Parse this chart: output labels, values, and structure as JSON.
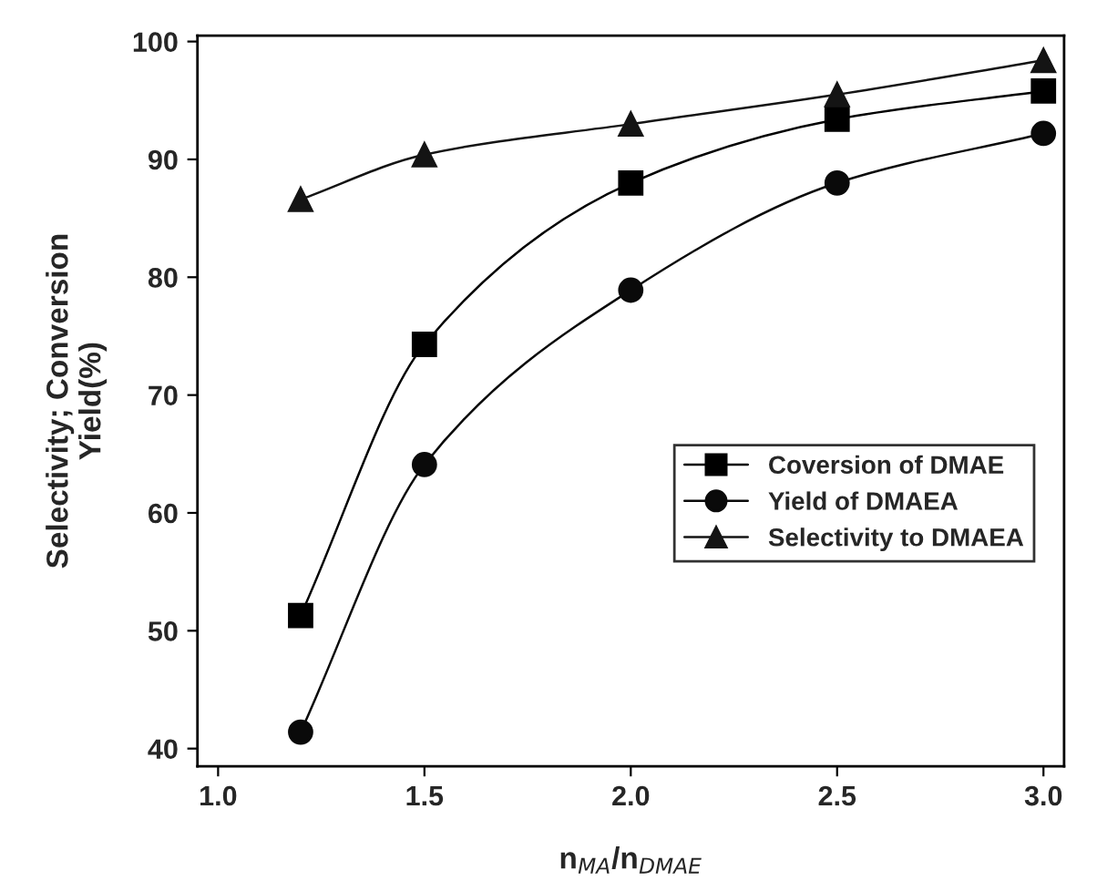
{
  "chart_data": {
    "type": "line",
    "xlabel": "n$_{MA}$/n$_{DMAE}$",
    "ylabel": "Selectivity; Conversion\nYield(%)",
    "x": [
      1.2,
      1.5,
      2.0,
      2.5,
      3.0
    ],
    "series": [
      {
        "name": "Coversion of DMAE",
        "color": "#000000",
        "marker": "square",
        "values": [
          51.3,
          74.3,
          88.0,
          93.4,
          95.8
        ]
      },
      {
        "name": "Yield of DMAEA",
        "color": "#0a0a0a",
        "marker": "circle",
        "values": [
          41.4,
          64.1,
          78.9,
          88.0,
          92.2
        ]
      },
      {
        "name": "Selectivity to DMAEA",
        "color": "#141414",
        "marker": "triangle",
        "values": [
          86.6,
          90.4,
          93.0,
          95.5,
          98.4
        ]
      }
    ],
    "xlim": [
      0.95,
      3.05
    ],
    "ylim": [
      38.5,
      100.5
    ],
    "xticks": [
      {
        "value": 1.0,
        "label": "1.0"
      },
      {
        "value": 1.5,
        "label": "1.5"
      },
      {
        "value": 2.0,
        "label": "2.0"
      },
      {
        "value": 2.5,
        "label": "2.5"
      },
      {
        "value": 3.0,
        "label": "3.0"
      }
    ],
    "yticks": [
      40,
      50,
      60,
      70,
      80,
      90,
      100
    ],
    "legend": "right",
    "line_style": "solid",
    "grid": false
  }
}
